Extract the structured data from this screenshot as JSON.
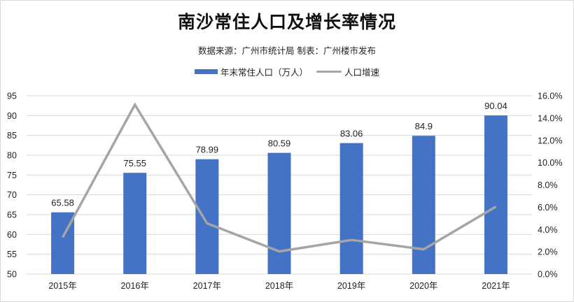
{
  "title": "南沙常住人口及增长率情况",
  "subtitle": "数据来源：广州市统计局  制表：广州楼市发布",
  "legend": {
    "bar_label": "年末常住人口（万人）",
    "line_label": "人口增速"
  },
  "colors": {
    "bar": "#4472c4",
    "line": "#a5a5a5",
    "grid": "#d9d9d9"
  },
  "chart_data": {
    "type": "bar+line",
    "title": "南沙常住人口及增长率情况",
    "subtitle": "数据来源：广州市统计局  制表：广州楼市发布",
    "categories": [
      "2015年",
      "2016年",
      "2017年",
      "2018年",
      "2019年",
      "2020年",
      "2021年"
    ],
    "series": [
      {
        "name": "年末常住人口（万人）",
        "type": "bar",
        "axis": "left",
        "values": [
          65.58,
          75.55,
          78.99,
          80.59,
          83.06,
          84.9,
          90.04
        ],
        "data_labels": [
          "65.58",
          "75.55",
          "78.99",
          "80.59",
          "83.06",
          "84.9",
          "90.04"
        ]
      },
      {
        "name": "人口增速",
        "type": "line",
        "axis": "right",
        "values": [
          0.033,
          0.152,
          0.0455,
          0.0203,
          0.0306,
          0.0222,
          0.0605
        ]
      }
    ],
    "left_axis": {
      "min": 50,
      "max": 95,
      "step": 5,
      "ticks": [
        "95",
        "90",
        "85",
        "80",
        "75",
        "70",
        "65",
        "60",
        "55",
        "50"
      ]
    },
    "right_axis": {
      "min": 0,
      "max": 0.16,
      "step": 0.02,
      "ticks": [
        "16.0%",
        "14.0%",
        "12.0%",
        "10.0%",
        "8.0%",
        "6.0%",
        "4.0%",
        "2.0%",
        "0.0%"
      ]
    },
    "grid": true,
    "legend_position": "top"
  }
}
